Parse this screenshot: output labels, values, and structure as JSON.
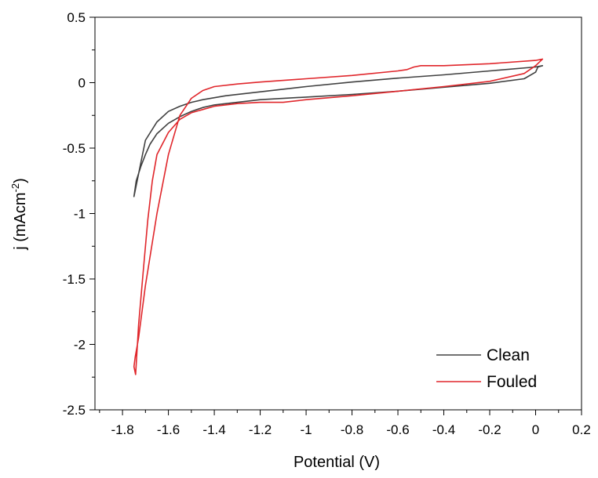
{
  "chart_data": {
    "type": "line",
    "title": "",
    "xlabel": "Potential (V)",
    "ylabel": {
      "main": "j (mAcm",
      "sup": "-2",
      "close": ")"
    },
    "xlim": [
      -1.92,
      0.2
    ],
    "ylim": [
      -2.5,
      0.5
    ],
    "xticks": [
      -1.8,
      -1.6,
      -1.4,
      -1.2,
      -1.0,
      -0.8,
      -0.6,
      -0.4,
      -0.2,
      0,
      0.2
    ],
    "xtick_labels": [
      "-1.8",
      "-1.6",
      "-1.4",
      "-1.2",
      "-1",
      "-0.8",
      "-0.6",
      "-0.4",
      "-0.2",
      "0",
      "0.2"
    ],
    "yticks": [
      -2.5,
      -2.0,
      -1.5,
      -1.0,
      -0.5,
      0,
      0.5
    ],
    "ytick_labels": [
      "-2.5",
      "-2",
      "-1.5",
      "-1",
      "-0.5",
      "0",
      "0.5"
    ],
    "grid": false,
    "legend_position": "bottom-right",
    "series": [
      {
        "name": "Clean",
        "color": "#404040",
        "x": [
          0.03,
          0.0,
          -0.2,
          -0.4,
          -0.6,
          -0.8,
          -1.0,
          -1.2,
          -1.35,
          -1.45,
          -1.5,
          -1.55,
          -1.6,
          -1.65,
          -1.7,
          -1.75,
          -1.74,
          -1.72,
          -1.7,
          -1.68,
          -1.65,
          -1.6,
          -1.55,
          -1.5,
          -1.45,
          -1.4,
          -1.3,
          -1.2,
          -1.0,
          -0.8,
          -0.6,
          -0.4,
          -0.2,
          -0.05,
          0.0,
          0.01,
          0.03
        ],
        "y": [
          0.13,
          0.12,
          0.09,
          0.06,
          0.035,
          0.005,
          -0.03,
          -0.07,
          -0.1,
          -0.13,
          -0.15,
          -0.18,
          -0.22,
          -0.3,
          -0.44,
          -0.87,
          -0.75,
          -0.64,
          -0.55,
          -0.47,
          -0.39,
          -0.31,
          -0.26,
          -0.22,
          -0.19,
          -0.17,
          -0.15,
          -0.13,
          -0.11,
          -0.09,
          -0.065,
          -0.035,
          -0.005,
          0.03,
          0.08,
          0.12,
          0.13
        ]
      },
      {
        "name": "Fouled",
        "color": "#e0262b",
        "x": [
          0.03,
          0.0,
          -0.2,
          -0.4,
          -0.5,
          -0.53,
          -0.56,
          -0.6,
          -0.8,
          -1.0,
          -1.2,
          -1.3,
          -1.4,
          -1.45,
          -1.5,
          -1.55,
          -1.6,
          -1.65,
          -1.7,
          -1.73,
          -1.745,
          -1.75,
          -1.743,
          -1.73,
          -1.71,
          -1.69,
          -1.67,
          -1.65,
          -1.6,
          -1.55,
          -1.5,
          -1.4,
          -1.3,
          -1.2,
          -1.1,
          -1.0,
          -0.8,
          -0.6,
          -0.4,
          -0.2,
          -0.05,
          0.0,
          0.03
        ],
        "y": [
          0.18,
          0.17,
          0.145,
          0.13,
          0.13,
          0.12,
          0.1,
          0.09,
          0.055,
          0.03,
          0.005,
          -0.01,
          -0.03,
          -0.06,
          -0.12,
          -0.25,
          -0.55,
          -1.0,
          -1.55,
          -1.95,
          -2.1,
          -2.17,
          -2.23,
          -1.85,
          -1.45,
          -1.05,
          -0.75,
          -0.55,
          -0.38,
          -0.28,
          -0.23,
          -0.18,
          -0.16,
          -0.15,
          -0.15,
          -0.13,
          -0.1,
          -0.065,
          -0.03,
          0.01,
          0.07,
          0.13,
          0.18
        ]
      }
    ]
  }
}
